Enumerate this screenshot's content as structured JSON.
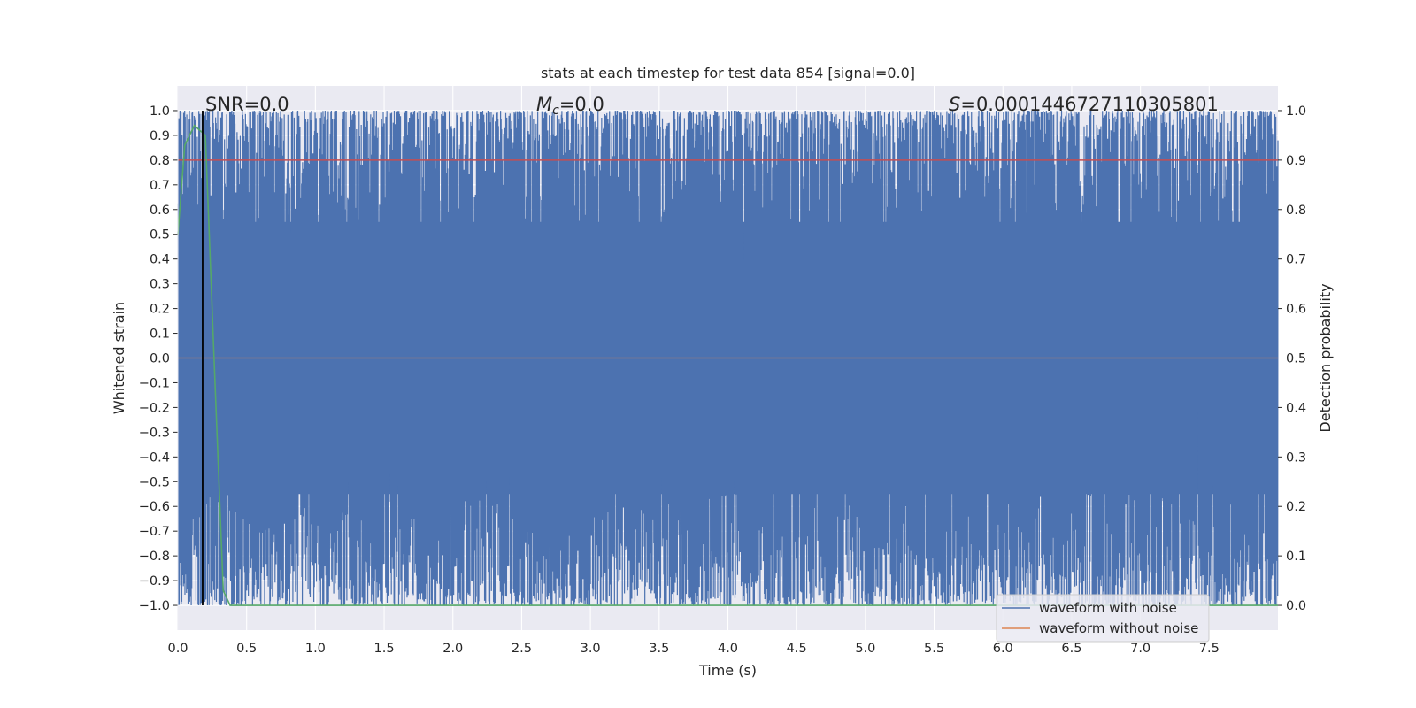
{
  "chart_data": {
    "type": "line",
    "title": "stats at each timestep for test data 854 [signal=0.0]",
    "xlabel": "Time (s)",
    "ylabel": "Whitened strain",
    "ylabel_right": "Detection probability",
    "xlim": [
      0.0,
      8.0
    ],
    "ylim": [
      -1.1,
      1.1
    ],
    "ylim_right": [
      -0.05,
      1.05
    ],
    "x_ticks": [
      "0.0",
      "0.5",
      "1.0",
      "1.5",
      "2.0",
      "2.5",
      "3.0",
      "3.5",
      "4.0",
      "4.5",
      "5.0",
      "5.5",
      "6.0",
      "6.5",
      "7.0",
      "7.5"
    ],
    "y_ticks": [
      "1.0",
      "0.9",
      "0.8",
      "0.7",
      "0.6",
      "0.5",
      "0.4",
      "0.3",
      "0.2",
      "0.1",
      "0.0",
      "−0.1",
      "−0.2",
      "−0.3",
      "−0.4",
      "−0.5",
      "−0.6",
      "−0.7",
      "−0.8",
      "−0.9",
      "−1.0"
    ],
    "y_ticks_right": [
      "1.0",
      "0.9",
      "0.8",
      "0.7",
      "0.6",
      "0.5",
      "0.4",
      "0.3",
      "0.2",
      "0.1",
      "0.0"
    ],
    "grid": true,
    "annotations": {
      "snr": "SNR=0.0",
      "mc_symbol": "M",
      "mc_sub": "c",
      "mc_value": "=0.0",
      "s_symbol": "S",
      "s_value": "=0.0001446727110305801"
    },
    "series": [
      {
        "name": "waveform with noise",
        "color": "#4c72b0",
        "axis": "left",
        "description_values": "dense noise spanning approximately -1.0 to 1.0 across the full time range"
      },
      {
        "name": "waveform without noise",
        "color": "#dd8452",
        "axis": "left",
        "values_constant": 0.0
      },
      {
        "color": "#55a868",
        "axis": "right",
        "x": [
          0.0,
          0.05,
          0.12,
          0.2,
          0.27,
          0.33,
          0.38,
          8.0
        ],
        "y": [
          0.75,
          0.93,
          0.97,
          0.95,
          0.45,
          0.03,
          0.0,
          0.0
        ]
      },
      {
        "color": "#c44e52",
        "axis": "right",
        "values_constant": 0.9
      }
    ],
    "vline": {
      "x": 0.18,
      "color": "#000000"
    },
    "legend": {
      "placement": "lower-right",
      "entries": [
        "waveform with noise",
        "waveform without noise"
      ]
    }
  }
}
